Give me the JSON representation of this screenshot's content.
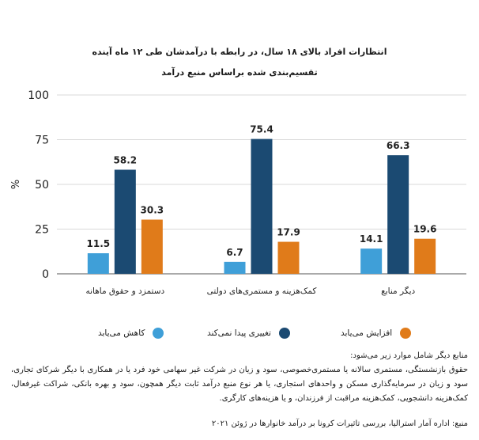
{
  "chart_data": {
    "type": "bar",
    "title": "انتظارات افراد بالای ۱۸ سال، در رابطه با درآمدشان طی ۱۲ ماه آینده",
    "subtitle": "تقسیم‌بندی شده براساس منبع درآمد",
    "ylabel": "%",
    "ylim": [
      0,
      100
    ],
    "yticks": [
      0,
      25,
      50,
      75,
      100
    ],
    "categories": [
      "دستمزد و حقوق ماهانه",
      "کمک‌هزینه و مستمری‌های دولتی",
      "دیگر منابع"
    ],
    "series": [
      {
        "name": "کاهش می‌یابد",
        "color": "#3f9fd8",
        "values": [
          11.5,
          6.7,
          14.1
        ]
      },
      {
        "name": "تغییری پیدا نمی‌کند",
        "color": "#1b4a72",
        "values": [
          58.2,
          75.4,
          66.3
        ]
      },
      {
        "name": "افزایش می‌یابد",
        "color": "#e07b1a",
        "values": [
          30.3,
          17.9,
          19.6
        ]
      }
    ]
  },
  "notes": {
    "heading": "منابع دیگر شامل موارد زیر می‌شود:",
    "body": "حقوق بازنشستگی، مستمری سالانه یا مستمری‌خصوصی، سود و زیان در شرکت غیر سهامی خود فرد یا در همکاری با دیگر شرکای تجاری، سود و زیان در سرمایه‌گذاری مسکن و واحدهای استجاری، یا هر نوع منبع درآمد ثابت دیگر همچون، سود و بهره بانکی، شراکت غیرفعال، کمک‌هزینه دانشجویی، کمک‌هزینه مراقبت از فرزندان، و یا هزینه‌های کارگری.",
    "source": "منبع: اداره آمار استرالیا، بررسی تاثیرات کرونا بر درآمد خانوارها در ژوئن ۲۰۲۱"
  }
}
